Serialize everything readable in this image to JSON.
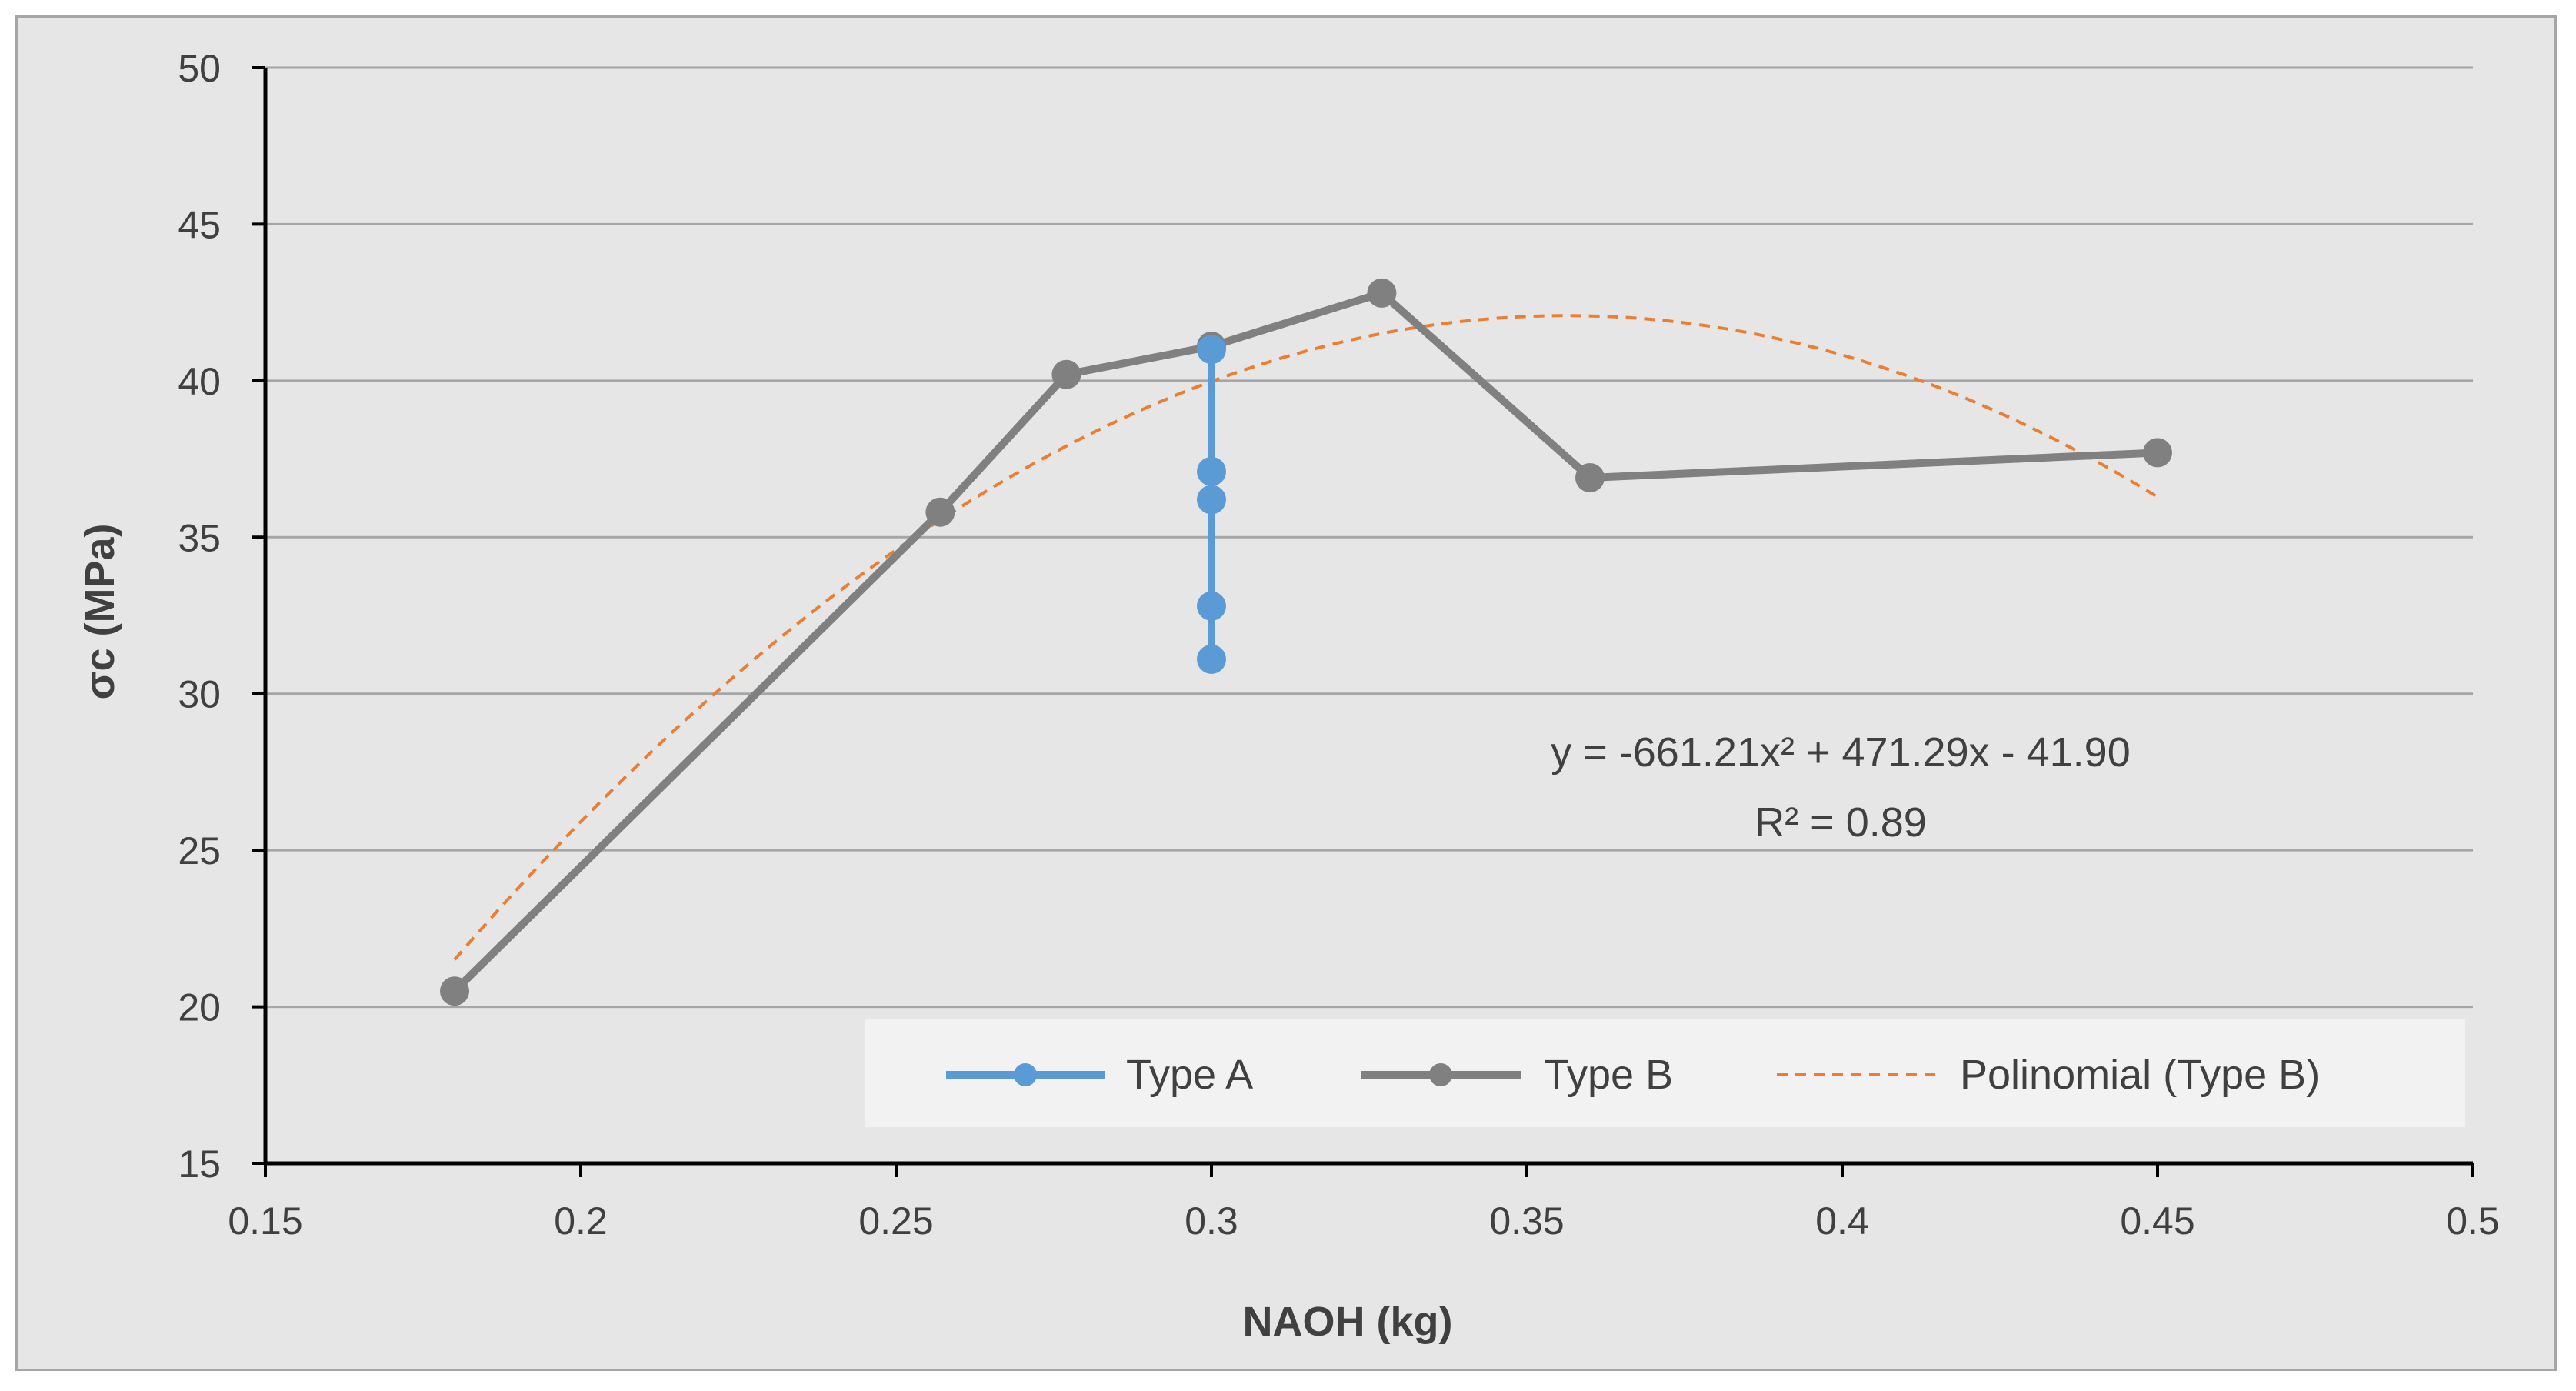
{
  "chart_data": {
    "type": "line",
    "title": "",
    "xlabel": "NAOH (kg)",
    "ylabel": "σc (MPa)",
    "xlim": [
      0.15,
      0.5
    ],
    "ylim": [
      15,
      50
    ],
    "x_ticks": [
      0.15,
      0.2,
      0.25,
      0.3,
      0.35,
      0.4,
      0.45,
      0.5
    ],
    "x_tick_labels": [
      "0.15",
      "0.2",
      "0.25",
      "0.3",
      "0.35",
      "0.4",
      "0.45",
      "0.5"
    ],
    "y_ticks": [
      15,
      20,
      25,
      30,
      35,
      40,
      45,
      50
    ],
    "y_tick_labels": [
      "15",
      "20",
      "25",
      "30",
      "35",
      "40",
      "45",
      "50"
    ],
    "grid": true,
    "series": [
      {
        "name": "Type A",
        "color": "#5b9bd5",
        "marker": "circle",
        "x": [
          0.3,
          0.3,
          0.3,
          0.3,
          0.3
        ],
        "y": [
          41.0,
          37.1,
          36.2,
          32.8,
          31.1
        ]
      },
      {
        "name": "Type B",
        "color": "#808080",
        "marker": "circle",
        "x": [
          0.18,
          0.257,
          0.277,
          0.3,
          0.327,
          0.36,
          0.45
        ],
        "y": [
          20.5,
          35.8,
          40.2,
          41.1,
          42.8,
          36.9,
          37.7
        ]
      }
    ],
    "trendline": {
      "name": "Polinomial (Type B)",
      "color": "#ed7d31",
      "style": "dashed",
      "coefficients": [
        -661.21,
        471.29,
        -41.9
      ],
      "x_range": [
        0.18,
        0.45
      ]
    },
    "annotation": {
      "equation": "y = -661.21x² + 471.29x - 41.90",
      "r_squared": "R² = 0.89"
    },
    "legend": {
      "position": "bottom-right",
      "entries": [
        "Type A",
        "Type B",
        "Polinomial (Type B)"
      ]
    }
  }
}
